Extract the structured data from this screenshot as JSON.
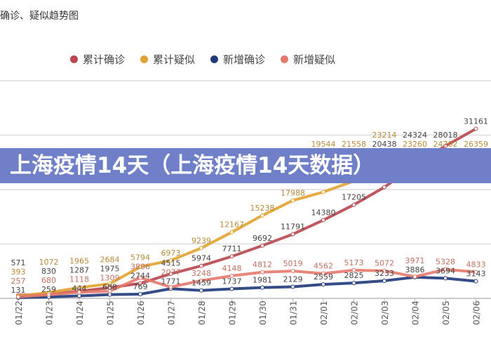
{
  "banner_text": "上海疫情14天（上海疫情14天数据）",
  "chart_data": {
    "type": "line",
    "title": "确诊、疑似趋势图",
    "categories": [
      "01/22",
      "01/23",
      "01/24",
      "01/25",
      "01/26",
      "01/27",
      "01/28",
      "01/29",
      "01/30",
      "01/31",
      "02/01",
      "02/02",
      "02/03",
      "02/04",
      "02/05",
      "02/06"
    ],
    "ylim": [
      0,
      40000
    ],
    "grid": true,
    "legend_position": "top",
    "series": [
      {
        "name": "累计确诊",
        "color": "#b8474e",
        "values": [
          571,
          830,
          1287,
          1975,
          2744,
          4515,
          5974,
          7711,
          9692,
          11791,
          14380,
          17205,
          20438,
          24324,
          28018,
          31161
        ]
      },
      {
        "name": "累计疑似",
        "color": "#e2a231",
        "values": [
          393,
          1072,
          1965,
          2684,
          5794,
          6973,
          9239,
          12167,
          15238,
          17988,
          19544,
          21558,
          23214,
          23260,
          24702,
          26359
        ]
      },
      {
        "name": "新增确诊",
        "color": "#1e3a7a",
        "values": [
          131,
          259,
          444,
          688,
          769,
          1771,
          1459,
          1737,
          1981,
          2129,
          2559,
          2825,
          3233,
          3886,
          3694,
          3143
        ]
      },
      {
        "name": "新增疑似",
        "color": "#e57a6a",
        "values": [
          257,
          680,
          1118,
          1309,
          3806,
          2077,
          3248,
          4148,
          4812,
          5019,
          4562,
          5173,
          5072,
          3971,
          5328,
          4833
        ]
      }
    ]
  }
}
